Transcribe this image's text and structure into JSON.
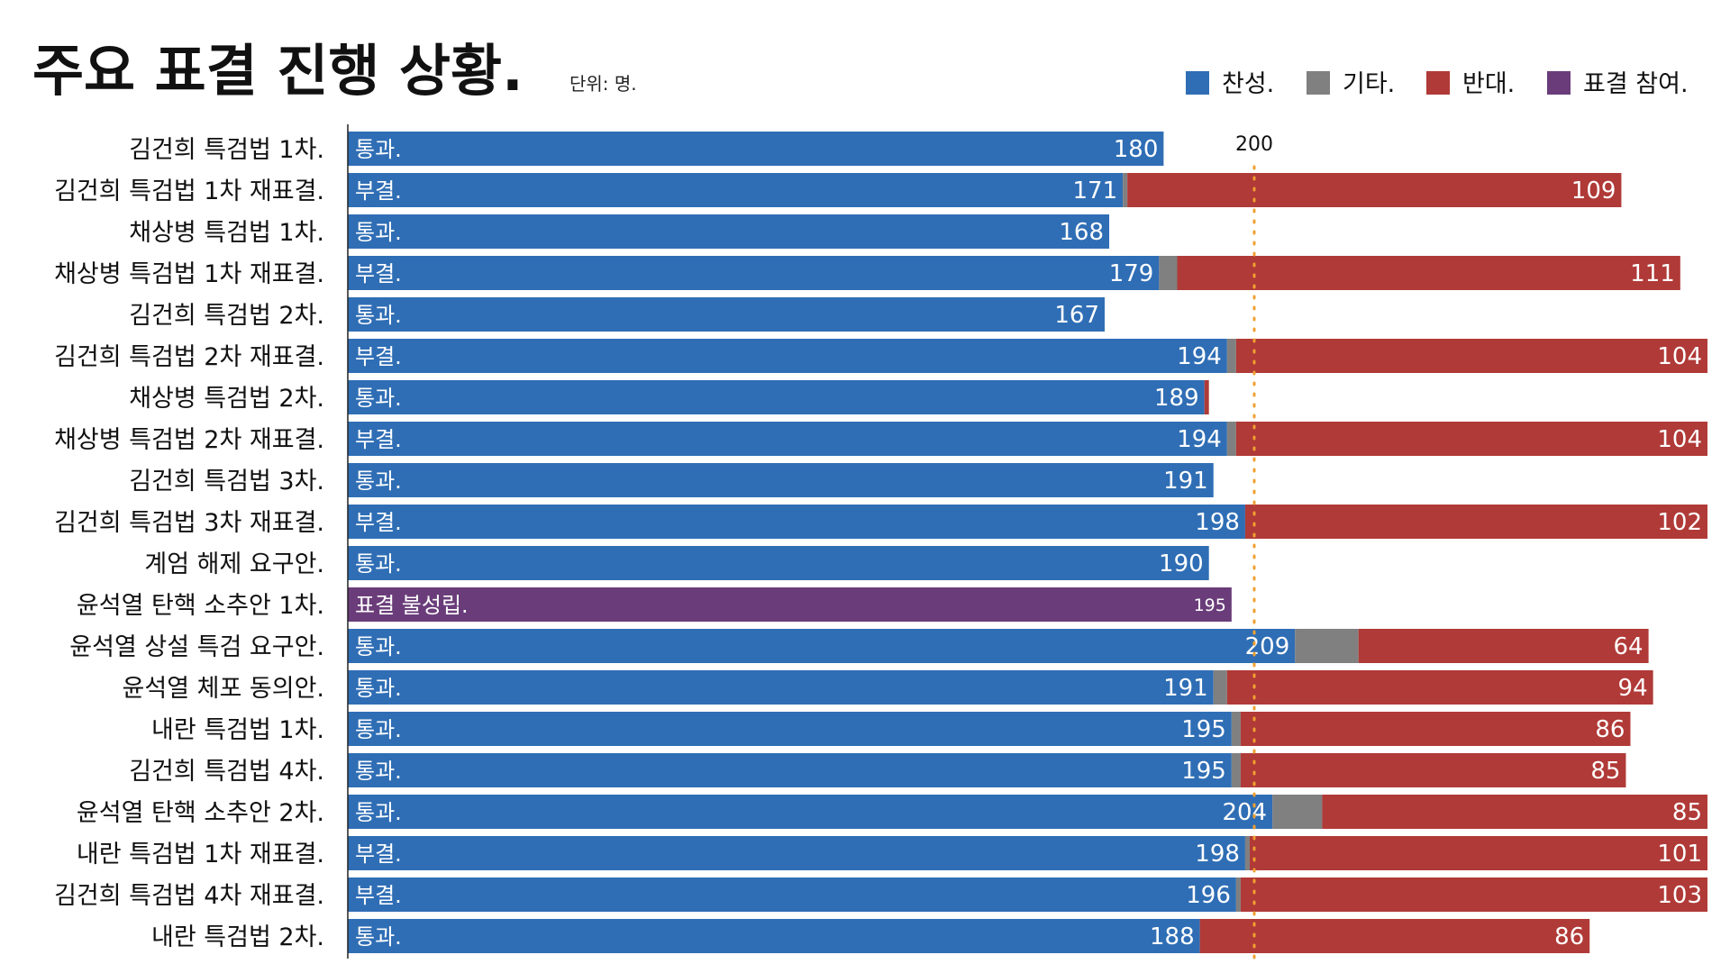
{
  "chart_data": {
    "type": "bar",
    "orientation": "horizontal",
    "stacked": true,
    "title": "주요 표결 진행 상황.",
    "unit": "단위: 명.",
    "legend": [
      {
        "name": "찬성.",
        "color": "#2f6eb5"
      },
      {
        "name": "기타.",
        "color": "#808080"
      },
      {
        "name": "반대.",
        "color": "#b03a37"
      },
      {
        "name": "표결 참여.",
        "color": "#6a3d7a"
      }
    ],
    "legend_position": "top-right",
    "reference_line": {
      "value": 200,
      "label": "200",
      "color": "#f0a030"
    },
    "xlim": [
      0,
      300
    ],
    "categories": [
      "김건희 특검법 1차.",
      "김건희 특검법 1차 재표결.",
      "채상병 특검법 1차.",
      "채상병 특검법 1차 재표결.",
      "김건희 특검법 2차.",
      "김건희 특검법 2차 재표결.",
      "채상병 특검법 2차.",
      "채상병 특검법 2차 재표결.",
      "김건희 특검법 3차.",
      "김건희 특검법 3차 재표결.",
      "계엄 해제 요구안.",
      "윤석열 탄핵 소추안 1차.",
      "윤석열 상설 특검 요구안.",
      "윤석열 체포 동의안.",
      "내란 특검법 1차.",
      "김건희 특검법 4차.",
      "윤석열 탄핵 소추안 2차.",
      "내란 특검법 1차 재표결.",
      "김건희 특검법 4차 재표결.",
      "내란 특검법 2차."
    ],
    "status": [
      "통과.",
      "부결.",
      "통과.",
      "부결.",
      "통과.",
      "부결.",
      "통과.",
      "부결.",
      "통과.",
      "부결.",
      "통과.",
      "표결 불성립.",
      "통과.",
      "통과.",
      "통과.",
      "통과.",
      "통과.",
      "부결.",
      "부결.",
      "통과."
    ],
    "series": [
      {
        "name": "찬성.",
        "values": [
          180,
          171,
          168,
          179,
          167,
          194,
          189,
          194,
          191,
          198,
          190,
          null,
          209,
          191,
          195,
          195,
          204,
          198,
          196,
          188
        ]
      },
      {
        "name": "기타.",
        "values": [
          0,
          1,
          0,
          4,
          0,
          2,
          0,
          2,
          0,
          0,
          0,
          null,
          14,
          3,
          2,
          2,
          11,
          1,
          1,
          0
        ]
      },
      {
        "name": "반대.",
        "values": [
          0,
          109,
          0,
          111,
          0,
          104,
          1,
          104,
          0,
          102,
          0,
          null,
          64,
          94,
          86,
          85,
          85,
          101,
          103,
          86
        ]
      },
      {
        "name": "표결 참여.",
        "values": [
          null,
          null,
          null,
          null,
          null,
          null,
          null,
          null,
          null,
          null,
          null,
          195,
          null,
          null,
          null,
          null,
          null,
          null,
          null,
          null
        ]
      }
    ],
    "value_labels": {
      "yes": [
        "180",
        "171",
        "168",
        "179",
        "167",
        "194",
        "189",
        "194",
        "191",
        "198",
        "190",
        "195",
        "209",
        "191",
        "195",
        "195",
        "204",
        "198",
        "196",
        "188"
      ],
      "no": [
        "",
        "109",
        "",
        "111",
        "",
        "104",
        "",
        "104",
        "",
        "102",
        "",
        "",
        "64",
        "94",
        "86",
        "85",
        "85",
        "101",
        "103",
        "86"
      ]
    }
  }
}
